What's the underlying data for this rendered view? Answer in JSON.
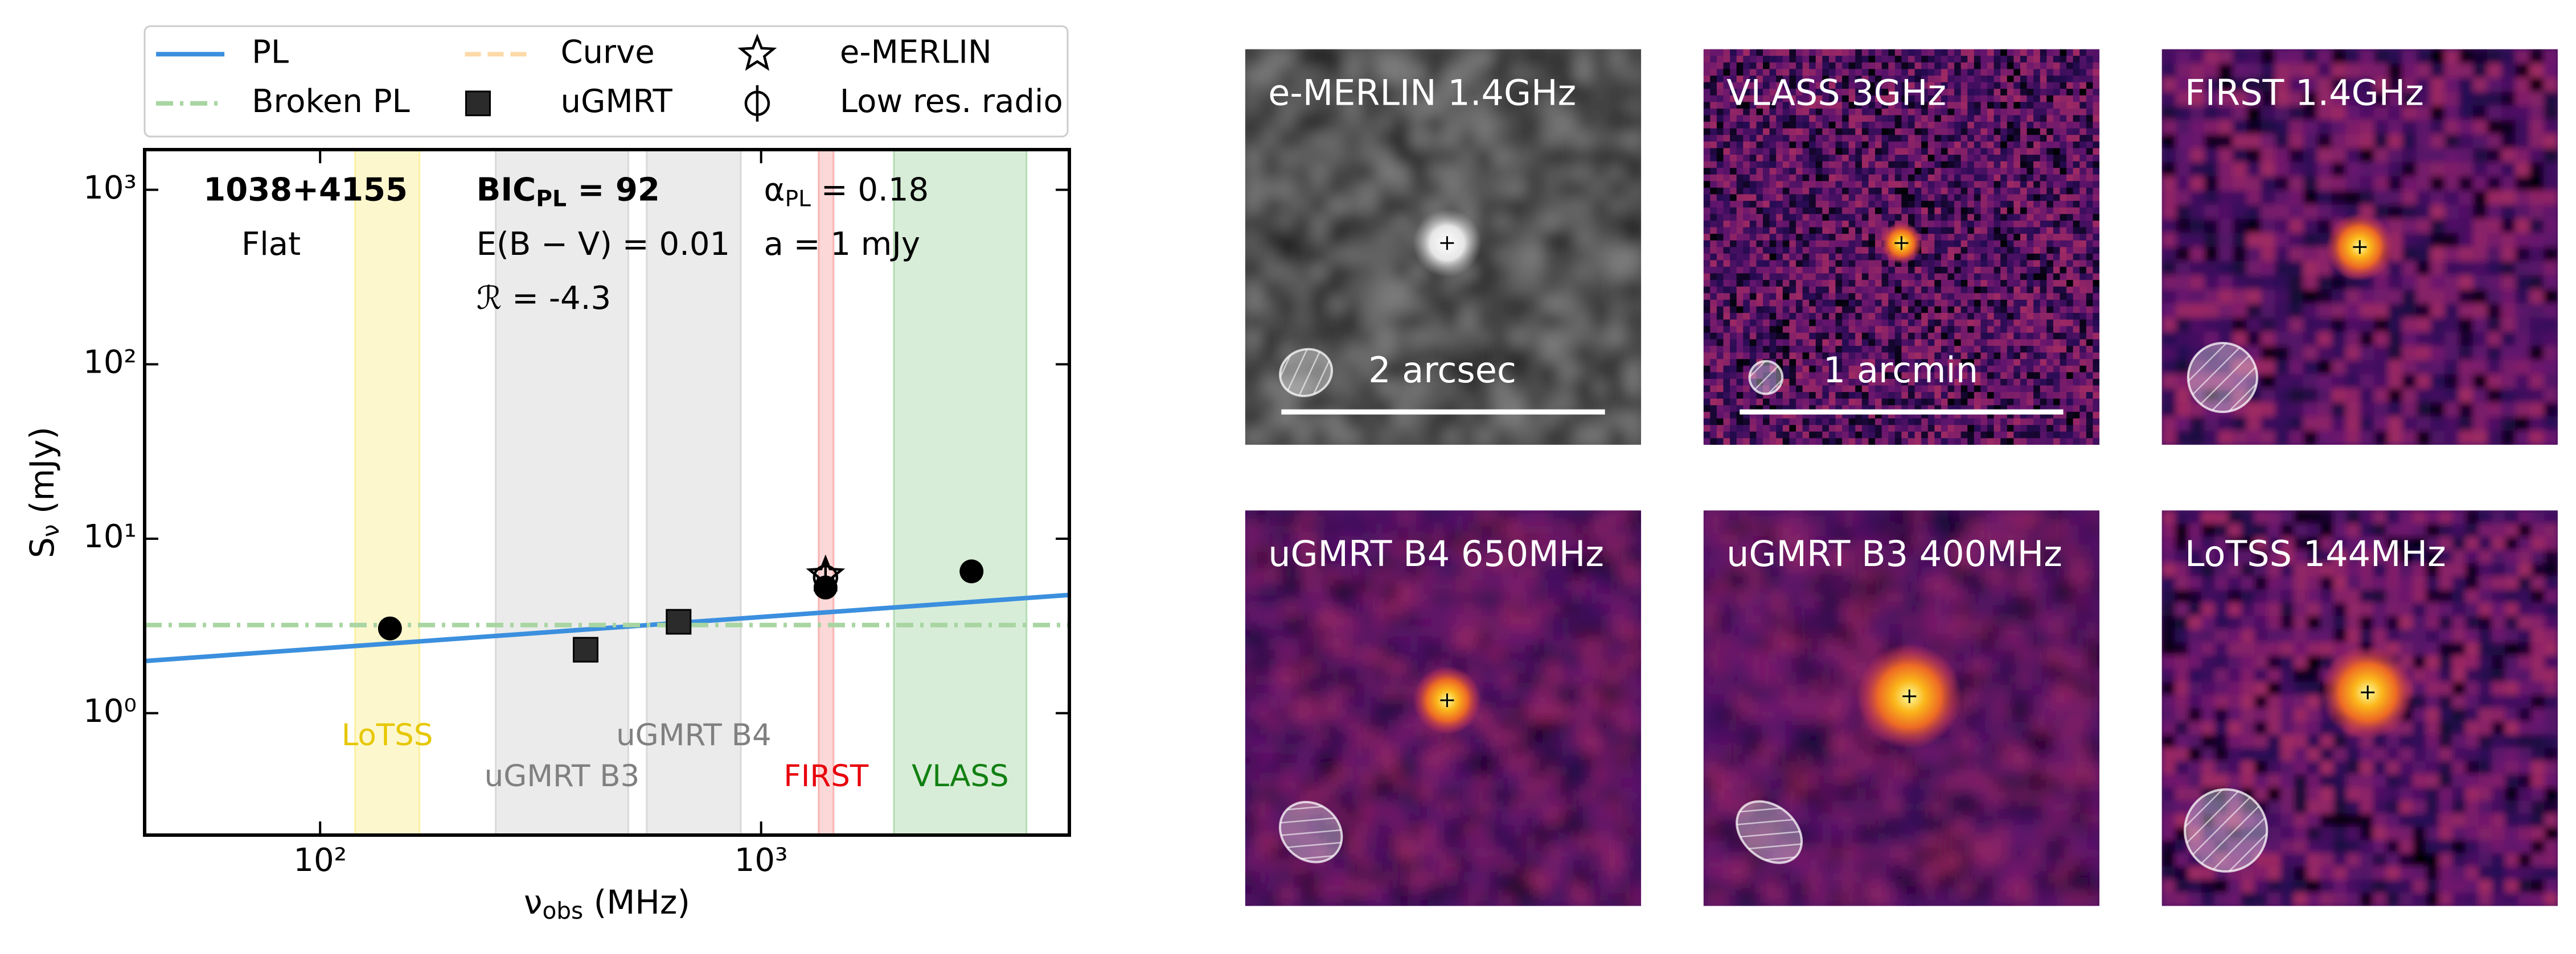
{
  "chart_data": {
    "type": "scatter",
    "xlabel": {
      "text": "ν",
      "sub": "obs",
      "rest": " (MHz)"
    },
    "ylabel": {
      "text": "S",
      "sub": "ν",
      "rest": " (mJy)"
    },
    "xscale": "log",
    "yscale": "log",
    "xlim": [
      40,
      5000
    ],
    "ylim": [
      0.2,
      1700
    ],
    "xticks": [
      {
        "value": 100,
        "label": "10²"
      },
      {
        "value": 1000,
        "label": "10³"
      }
    ],
    "yticks": [
      {
        "value": 1,
        "label": "10⁰"
      },
      {
        "value": 10,
        "label": "10¹"
      },
      {
        "value": 100,
        "label": "10²"
      },
      {
        "value": 1000,
        "label": "10³"
      }
    ],
    "legend_position": "top",
    "bands": [
      {
        "name": "LoTSS",
        "range": [
          120,
          168
        ],
        "color": "#f5d90a",
        "text_color": "#e6c700"
      },
      {
        "name": "uGMRT B3",
        "range": [
          250,
          500
        ],
        "color": "#9a9a9a",
        "text_color": "#808080"
      },
      {
        "name": "uGMRT B4",
        "range": [
          550,
          900
        ],
        "color": "#9a9a9a",
        "text_color": "#808080"
      },
      {
        "name": "FIRST",
        "range": [
          1350,
          1460
        ],
        "color": "#f03c3c",
        "text_color": "#e8000b"
      },
      {
        "name": "VLASS",
        "range": [
          2000,
          4000
        ],
        "color": "#3aa63a",
        "text_color": "#118011"
      }
    ],
    "annotations": [
      {
        "text": "1038+4155",
        "bold": true
      },
      {
        "text": "Flat"
      },
      {
        "text": "BIC",
        "sub": "PL",
        "rest": " = 92",
        "bold": true
      },
      {
        "text": "E(B − V) = 0.01"
      },
      {
        "text": "ℛ = -4.3"
      },
      {
        "text": "α",
        "sub": "PL",
        "rest": " = 0.18"
      },
      {
        "text": "a = 1 mJy"
      }
    ],
    "series": [
      {
        "name": "PL",
        "style": "line",
        "dash": "solid",
        "color": "#3b8fde",
        "x": [
          40,
          5000
        ],
        "values": [
          1.99,
          4.76
        ]
      },
      {
        "name": "Broken PL",
        "style": "line",
        "dash": "dashdot",
        "color": "#a8d5a2",
        "x": [
          40,
          5000
        ],
        "values": [
          3.2,
          3.2
        ]
      },
      {
        "name": "Curve",
        "style": "line",
        "dash": "dashed",
        "color": "#fcd9a8",
        "x": [],
        "values": []
      },
      {
        "name": "uGMRT",
        "style": "marker",
        "marker": "square",
        "color": "#2b2b2b",
        "x": [
          400,
          650
        ],
        "values": [
          2.31,
          3.34
        ]
      },
      {
        "name": "e-MERLIN",
        "style": "marker",
        "marker": "star",
        "color": "#000000",
        "x": [
          1400
        ],
        "values": [
          6.2
        ]
      },
      {
        "name": "Low res. radio",
        "style": "marker",
        "marker": "phi",
        "color": "#000000",
        "x": [
          1400
        ],
        "values": [
          6.0
        ]
      },
      {
        "style": "marker",
        "marker": "circle",
        "color": "#000000",
        "x": [
          144,
          1400,
          3000
        ],
        "values": [
          3.06,
          5.25,
          6.5
        ]
      }
    ]
  },
  "panels": [
    {
      "title": "e-MERLIN 1.4GHz",
      "colormap": "gray",
      "scalebar": "2 arcsec"
    },
    {
      "title": "VLASS 3GHz",
      "colormap": "inferno",
      "scalebar": "1 arcmin"
    },
    {
      "title": "FIRST 1.4GHz",
      "colormap": "inferno"
    },
    {
      "title": "uGMRT B4 650MHz",
      "colormap": "inferno"
    },
    {
      "title": "uGMRT B3 400MHz",
      "colormap": "inferno"
    },
    {
      "title": "LoTSS 144MHz",
      "colormap": "inferno"
    }
  ]
}
